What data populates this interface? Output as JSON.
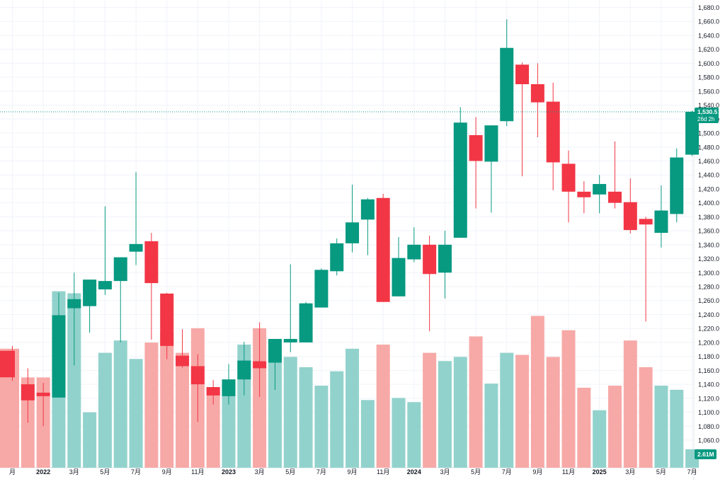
{
  "chart_data": {
    "type": "candlestick",
    "title": "",
    "xlabel": "",
    "ylabel": "",
    "ylim": [
      1040,
      1690
    ],
    "grid": true,
    "colors": {
      "up": "#089981",
      "down": "#f23645",
      "up_volume": "#92d2cc",
      "down_volume": "#f7a9a7",
      "grid": "#f0f3fa",
      "axis_text": "#131722",
      "price_line": "#089981"
    },
    "y_ticks": [
      "1,060.0",
      "1,080.0",
      "1,100.0",
      "1,120.0",
      "1,140.0",
      "1,160.0",
      "1,180.0",
      "1,200.0",
      "1,220.0",
      "1,240.0",
      "1,260.0",
      "1,280.0",
      "1,300.0",
      "1,320.0",
      "1,340.0",
      "1,360.0",
      "1,380.0",
      "1,400.0",
      "1,420.0",
      "1,440.0",
      "1,460.0",
      "1,480.0",
      "1,500.0",
      "1,520.0",
      "1,540.0",
      "1,560.0",
      "1,580.0",
      "1,600.0",
      "1,620.0",
      "1,640.0",
      "1,660.0",
      "1,680.0"
    ],
    "x_ticks": [
      {
        "index": 0,
        "label": "月"
      },
      {
        "index": 2,
        "label": "2022"
      },
      {
        "index": 4,
        "label": "3月"
      },
      {
        "index": 6,
        "label": "5月"
      },
      {
        "index": 8,
        "label": "7月"
      },
      {
        "index": 10,
        "label": "9月"
      },
      {
        "index": 12,
        "label": "11月"
      },
      {
        "index": 14,
        "label": "2023"
      },
      {
        "index": 16,
        "label": "3月"
      },
      {
        "index": 18,
        "label": "5月"
      },
      {
        "index": 20,
        "label": "7月"
      },
      {
        "index": 22,
        "label": "9月"
      },
      {
        "index": 24,
        "label": "11月"
      },
      {
        "index": 26,
        "label": "2024"
      },
      {
        "index": 28,
        "label": "3月"
      },
      {
        "index": 30,
        "label": "5月"
      },
      {
        "index": 32,
        "label": "7月"
      },
      {
        "index": 34,
        "label": "9月"
      },
      {
        "index": 36,
        "label": "11月"
      },
      {
        "index": 38,
        "label": "2025"
      },
      {
        "index": 40,
        "label": "3月"
      },
      {
        "index": 42,
        "label": "5月"
      },
      {
        "index": 44,
        "label": "7月"
      }
    ],
    "candles": [
      {
        "o": 1188,
        "h": 1195,
        "l": 1145,
        "c": 1150,
        "v": 0.58
      },
      {
        "o": 1140,
        "h": 1163,
        "l": 1085,
        "c": 1117,
        "v": 0.44
      },
      {
        "o": 1128,
        "h": 1142,
        "l": 1080,
        "c": 1123,
        "v": 0.44
      },
      {
        "o": 1121,
        "h": 1271,
        "l": 1121,
        "c": 1239,
        "v": 0.86
      },
      {
        "o": 1249,
        "h": 1300,
        "l": 1167,
        "c": 1262,
        "v": 0.85
      },
      {
        "o": 1252,
        "h": 1290,
        "l": 1214,
        "c": 1290,
        "v": 0.27
      },
      {
        "o": 1276,
        "h": 1395,
        "l": 1268,
        "c": 1288,
        "v": 0.56
      },
      {
        "o": 1288,
        "h": 1322,
        "l": 1200,
        "c": 1322,
        "v": 0.62
      },
      {
        "o": 1330,
        "h": 1444,
        "l": 1311,
        "c": 1341,
        "v": 0.53
      },
      {
        "o": 1345,
        "h": 1357,
        "l": 1204,
        "c": 1285,
        "v": 0.61
      },
      {
        "o": 1270,
        "h": 1271,
        "l": 1176,
        "c": 1195,
        "v": 0.66
      },
      {
        "o": 1181,
        "h": 1219,
        "l": 1164,
        "c": 1166,
        "v": 0.56
      },
      {
        "o": 1166,
        "h": 1183,
        "l": 1086,
        "c": 1140,
        "v": 0.68
      },
      {
        "o": 1136,
        "h": 1146,
        "l": 1111,
        "c": 1124,
        "v": 0.36
      },
      {
        "o": 1123,
        "h": 1169,
        "l": 1111,
        "c": 1147,
        "v": 0.38
      },
      {
        "o": 1147,
        "h": 1201,
        "l": 1124,
        "c": 1174,
        "v": 0.6
      },
      {
        "o": 1173,
        "h": 1229,
        "l": 1122,
        "c": 1163,
        "v": 0.68
      },
      {
        "o": 1171,
        "h": 1205,
        "l": 1132,
        "c": 1205,
        "v": 0.54
      },
      {
        "o": 1200,
        "h": 1312,
        "l": 1186,
        "c": 1205,
        "v": 0.54
      },
      {
        "o": 1200,
        "h": 1258,
        "l": 1200,
        "c": 1256,
        "v": 0.49
      },
      {
        "o": 1250,
        "h": 1306,
        "l": 1250,
        "c": 1304,
        "v": 0.4
      },
      {
        "o": 1302,
        "h": 1349,
        "l": 1296,
        "c": 1342,
        "v": 0.47
      },
      {
        "o": 1342,
        "h": 1426,
        "l": 1329,
        "c": 1372,
        "v": 0.58
      },
      {
        "o": 1376,
        "h": 1407,
        "l": 1325,
        "c": 1405,
        "v": 0.33
      },
      {
        "o": 1407,
        "h": 1413,
        "l": 1258,
        "c": 1258,
        "v": 0.6
      },
      {
        "o": 1266,
        "h": 1351,
        "l": 1266,
        "c": 1321,
        "v": 0.34
      },
      {
        "o": 1319,
        "h": 1365,
        "l": 1315,
        "c": 1340,
        "v": 0.32
      },
      {
        "o": 1340,
        "h": 1353,
        "l": 1216,
        "c": 1298,
        "v": 0.56
      },
      {
        "o": 1300,
        "h": 1360,
        "l": 1263,
        "c": 1340,
        "v": 0.52
      },
      {
        "o": 1350,
        "h": 1537,
        "l": 1350,
        "c": 1515,
        "v": 0.54
      },
      {
        "o": 1497,
        "h": 1523,
        "l": 1392,
        "c": 1460,
        "v": 0.64
      },
      {
        "o": 1459,
        "h": 1511,
        "l": 1386,
        "c": 1511,
        "v": 0.41
      },
      {
        "o": 1517,
        "h": 1663,
        "l": 1510,
        "c": 1622,
        "v": 0.56
      },
      {
        "o": 1598,
        "h": 1601,
        "l": 1438,
        "c": 1570,
        "v": 0.55
      },
      {
        "o": 1570,
        "h": 1600,
        "l": 1494,
        "c": 1544,
        "v": 0.74
      },
      {
        "o": 1545,
        "h": 1572,
        "l": 1418,
        "c": 1458,
        "v": 0.54
      },
      {
        "o": 1456,
        "h": 1475,
        "l": 1372,
        "c": 1416,
        "v": 0.67
      },
      {
        "o": 1416,
        "h": 1431,
        "l": 1385,
        "c": 1408,
        "v": 0.39
      },
      {
        "o": 1412,
        "h": 1440,
        "l": 1385,
        "c": 1427,
        "v": 0.28
      },
      {
        "o": 1416,
        "h": 1488,
        "l": 1392,
        "c": 1400,
        "v": 0.4
      },
      {
        "o": 1401,
        "h": 1435,
        "l": 1356,
        "c": 1361,
        "v": 0.62
      },
      {
        "o": 1377,
        "h": 1380,
        "l": 1230,
        "c": 1369,
        "v": 0.49
      },
      {
        "o": 1357,
        "h": 1425,
        "l": 1336,
        "c": 1389,
        "v": 0.4
      },
      {
        "o": 1384,
        "h": 1478,
        "l": 1372,
        "c": 1465,
        "v": 0.38
      },
      {
        "o": 1469,
        "h": 1532,
        "l": 1467,
        "c": 1530.5,
        "v": 0.09
      }
    ],
    "price_label": {
      "value": 1530.5,
      "value_text": "1,530.5",
      "countdown": "26d 2h"
    },
    "volume_label": "2.61M"
  }
}
